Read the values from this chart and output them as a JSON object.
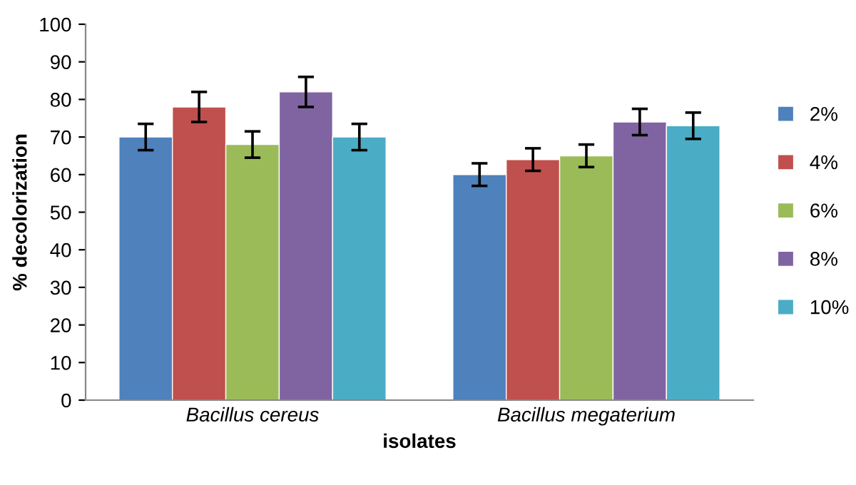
{
  "chart_data": {
    "type": "bar",
    "xlabel": "isolates",
    "ylabel": "% decolorization",
    "categories": [
      "Bacillus cereus",
      "Bacillus megaterium"
    ],
    "series": [
      {
        "name": "2%",
        "color": "#4f81bd",
        "values": [
          70,
          60
        ],
        "errors": [
          3.5,
          3
        ]
      },
      {
        "name": "4%",
        "color": "#c0504d",
        "values": [
          78,
          64
        ],
        "errors": [
          4,
          3
        ]
      },
      {
        "name": "6%",
        "color": "#9bbb59",
        "values": [
          68,
          65
        ],
        "errors": [
          3.5,
          3
        ]
      },
      {
        "name": "8%",
        "color": "#8064a2",
        "values": [
          82,
          74
        ],
        "errors": [
          4,
          3.5
        ]
      },
      {
        "name": "10%",
        "color": "#4bacc6",
        "values": [
          70,
          73
        ],
        "errors": [
          3.5,
          3.5
        ]
      }
    ],
    "ylim": [
      0,
      100
    ],
    "yticks": [
      0,
      10,
      20,
      30,
      40,
      50,
      60,
      70,
      80,
      90,
      100
    ],
    "legend": "right"
  }
}
